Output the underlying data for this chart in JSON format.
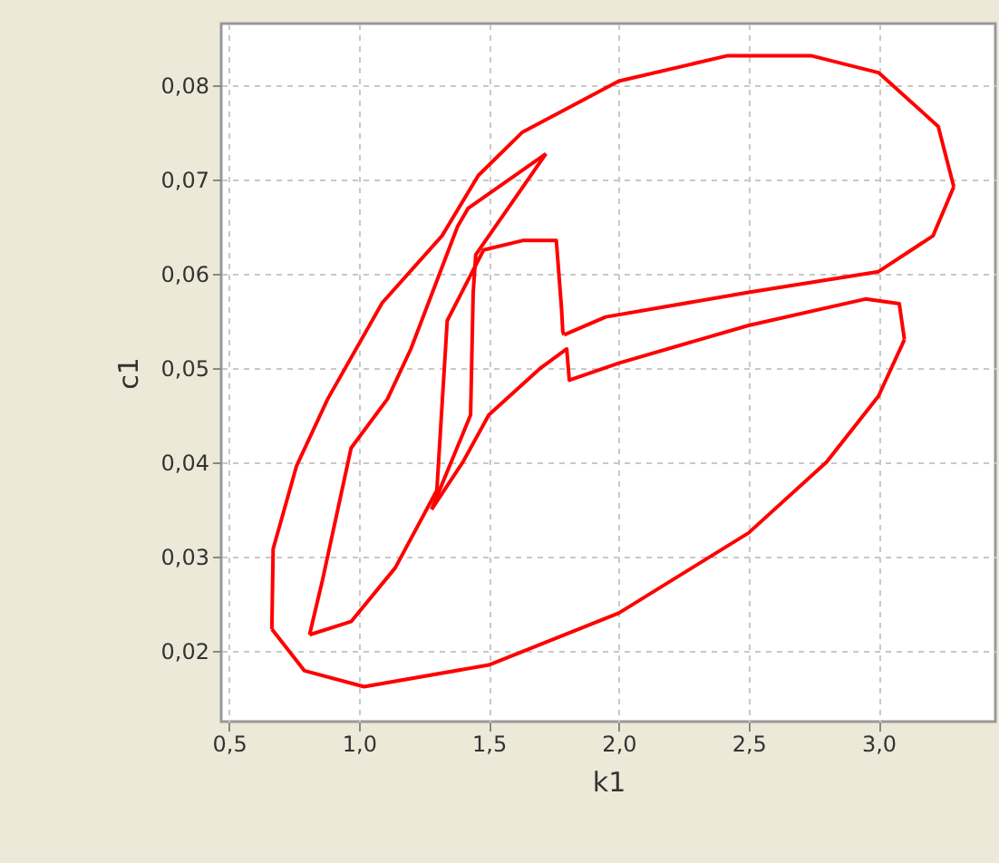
{
  "chart_data": {
    "type": "line",
    "xlabel": "k1",
    "ylabel": "c1",
    "xlim": [
      0.47,
      3.45
    ],
    "ylim": [
      0.0125,
      0.0865
    ],
    "xticks": [
      {
        "value": 0.5,
        "label": "0,5"
      },
      {
        "value": 1.0,
        "label": "1,0"
      },
      {
        "value": 1.5,
        "label": "1,5"
      },
      {
        "value": 2.0,
        "label": "2,0"
      },
      {
        "value": 2.5,
        "label": "2,5"
      },
      {
        "value": 3.0,
        "label": "3,0"
      }
    ],
    "yticks": [
      {
        "value": 0.02,
        "label": "0,02"
      },
      {
        "value": 0.03,
        "label": "0,03"
      },
      {
        "value": 0.04,
        "label": "0,04"
      },
      {
        "value": 0.05,
        "label": "0,05"
      },
      {
        "value": 0.06,
        "label": "0,06"
      },
      {
        "value": 0.07,
        "label": "0,07"
      },
      {
        "value": 0.08,
        "label": "0,08"
      }
    ],
    "grid": true,
    "line_style": "solid",
    "series": [
      {
        "color": "#ff0000",
        "x": [
          1.79,
          1.95,
          2.5,
          3.0,
          3.21,
          3.29
        ],
        "values": [
          0.0535,
          0.0554,
          0.058,
          0.0602,
          0.064,
          0.0692
        ]
      },
      {
        "color": "#ff0000",
        "x": [
          3.29,
          3.23,
          3.0,
          2.74,
          2.42,
          2.0,
          1.63,
          1.46,
          1.32,
          1.09,
          0.88,
          0.76,
          0.67,
          0.665
        ],
        "values": [
          0.0692,
          0.0756,
          0.0813,
          0.0831,
          0.0831,
          0.0804,
          0.075,
          0.0704,
          0.064,
          0.0569,
          0.0467,
          0.0396,
          0.0308,
          0.0223
        ]
      },
      {
        "color": "#ff0000",
        "x": [
          0.665,
          0.79,
          1.02,
          1.5,
          2.0,
          2.5,
          2.8,
          3.0,
          3.1
        ],
        "values": [
          0.0223,
          0.0179,
          0.0162,
          0.0185,
          0.024,
          0.0325,
          0.04,
          0.047,
          0.053
        ]
      },
      {
        "color": "#ff0000",
        "x": [
          3.1,
          3.08,
          2.95,
          2.5,
          2.0,
          1.81,
          1.8,
          1.7,
          1.5,
          1.4,
          1.28
        ],
        "values": [
          0.053,
          0.0568,
          0.0573,
          0.0545,
          0.0505,
          0.0487,
          0.052,
          0.05,
          0.045,
          0.04,
          0.035
        ]
      },
      {
        "color": "#ff0000",
        "x": [
          1.28,
          1.43,
          1.44,
          1.45,
          1.72
        ],
        "values": [
          0.035,
          0.045,
          0.058,
          0.062,
          0.0727
        ]
      },
      {
        "color": "#ff0000",
        "x": [
          1.72,
          1.42,
          1.38,
          1.2,
          1.11,
          0.97,
          0.86,
          0.81
        ],
        "values": [
          0.0727,
          0.0669,
          0.065,
          0.052,
          0.0467,
          0.0415,
          0.0275,
          0.0217
        ]
      },
      {
        "color": "#ff0000",
        "x": [
          0.81,
          0.97,
          1.14,
          1.3,
          1.34,
          1.48,
          1.63,
          1.76,
          1.78,
          1.785,
          1.79
        ],
        "values": [
          0.0217,
          0.0231,
          0.0288,
          0.037,
          0.055,
          0.0625,
          0.0635,
          0.0635,
          0.0563,
          0.0538,
          0.0535
        ]
      }
    ]
  }
}
